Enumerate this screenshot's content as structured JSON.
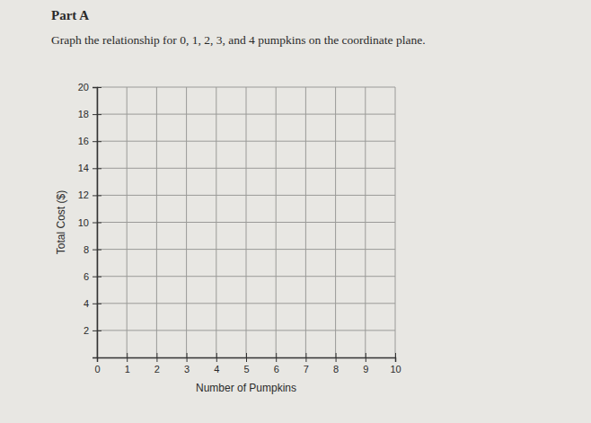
{
  "chart_data": {
    "type": "scatter",
    "title": "Part A",
    "subtitle": "Graph the relationship for 0, 1, 2, 3, and 4 pumpkins on the coordinate plane.",
    "x_label": "Number of Pumpkins",
    "y_label": "Total Cost ($)",
    "x": [],
    "values": [],
    "xlim": [
      0,
      10
    ],
    "ylim": [
      0,
      20
    ],
    "xticks": [
      0,
      1,
      2,
      3,
      4,
      5,
      6,
      7,
      8,
      9,
      10
    ],
    "yticks": [
      2,
      4,
      6,
      8,
      10,
      12,
      14,
      16,
      18,
      20
    ],
    "grid": true
  }
}
